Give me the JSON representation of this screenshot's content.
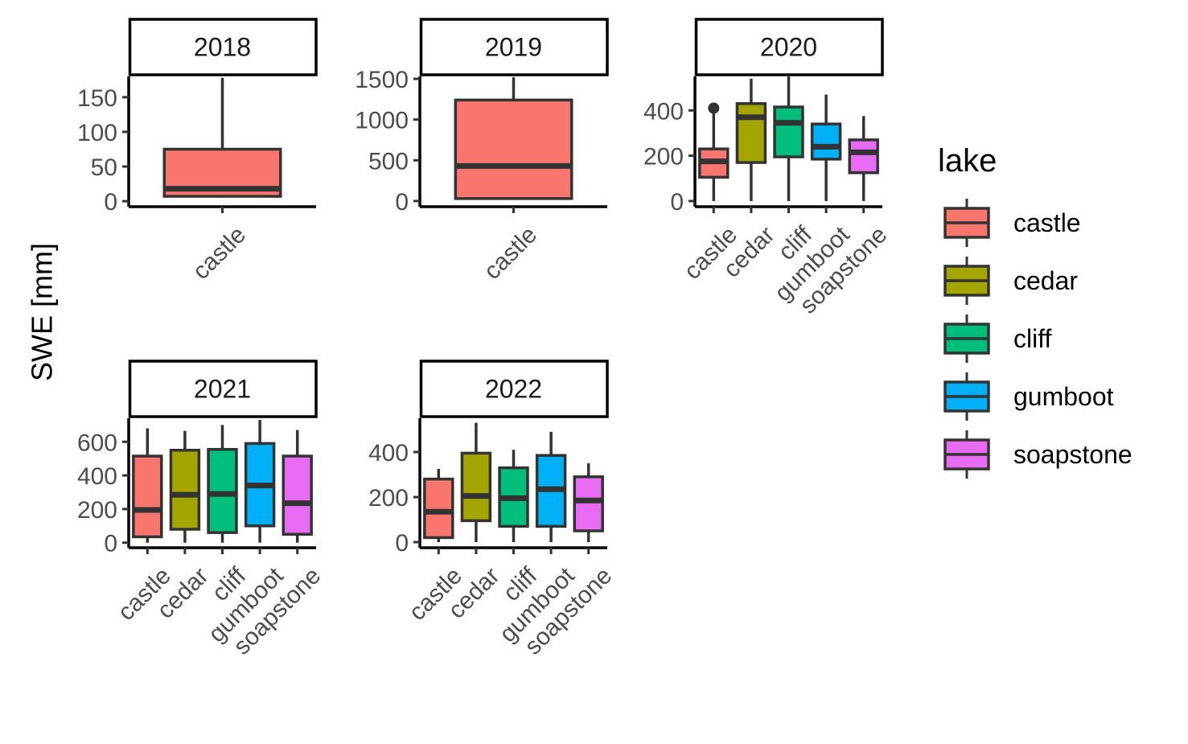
{
  "chart_data": {
    "type": "boxplot",
    "ylabel": "SWE [mm]",
    "legend": {
      "title": "lake",
      "position": "right",
      "entries": [
        "castle",
        "cedar",
        "cliff",
        "gumboot",
        "soapstone"
      ]
    },
    "colors": {
      "castle": "#F8766D",
      "cedar": "#A3A500",
      "cliff": "#00BF7D",
      "gumboot": "#00B0F6",
      "soapstone": "#E76BF3"
    },
    "grid": false,
    "facets": [
      {
        "panel": "2018",
        "ylim": [
          -8,
          180
        ],
        "yticks": [
          0,
          50,
          100,
          150
        ],
        "boxes": [
          {
            "lake": "castle",
            "whisker_low": 5,
            "q1": 7,
            "median": 18,
            "q3": 75,
            "whisker_high": 178,
            "outliers": []
          }
        ]
      },
      {
        "panel": "2019",
        "ylim": [
          -70,
          1530
        ],
        "yticks": [
          0,
          500,
          1000,
          1500
        ],
        "boxes": [
          {
            "lake": "castle",
            "whisker_low": 20,
            "q1": 30,
            "median": 430,
            "q3": 1240,
            "whisker_high": 1520,
            "outliers": []
          }
        ]
      },
      {
        "panel": "2020",
        "ylim": [
          -25,
          550
        ],
        "yticks": [
          0,
          200,
          400
        ],
        "boxes": [
          {
            "lake": "castle",
            "whisker_low": 0,
            "q1": 105,
            "median": 175,
            "q3": 230,
            "whisker_high": 405,
            "outliers": [
              410
            ]
          },
          {
            "lake": "cedar",
            "whisker_low": 0,
            "q1": 170,
            "median": 370,
            "q3": 430,
            "whisker_high": 540,
            "outliers": []
          },
          {
            "lake": "cliff",
            "whisker_low": 0,
            "q1": 195,
            "median": 345,
            "q3": 415,
            "whisker_high": 550,
            "outliers": []
          },
          {
            "lake": "gumboot",
            "whisker_low": 0,
            "q1": 185,
            "median": 240,
            "q3": 340,
            "whisker_high": 470,
            "outliers": []
          },
          {
            "lake": "soapstone",
            "whisker_low": 0,
            "q1": 125,
            "median": 215,
            "q3": 270,
            "whisker_high": 375,
            "outliers": []
          }
        ]
      },
      {
        "panel": "2021",
        "ylim": [
          -30,
          740
        ],
        "yticks": [
          0,
          200,
          400,
          600
        ],
        "boxes": [
          {
            "lake": "castle",
            "whisker_low": 0,
            "q1": 35,
            "median": 195,
            "q3": 515,
            "whisker_high": 680,
            "outliers": []
          },
          {
            "lake": "cedar",
            "whisker_low": 0,
            "q1": 80,
            "median": 285,
            "q3": 550,
            "whisker_high": 665,
            "outliers": []
          },
          {
            "lake": "cliff",
            "whisker_low": 0,
            "q1": 60,
            "median": 290,
            "q3": 555,
            "whisker_high": 700,
            "outliers": []
          },
          {
            "lake": "gumboot",
            "whisker_low": 0,
            "q1": 100,
            "median": 340,
            "q3": 590,
            "whisker_high": 730,
            "outliers": []
          },
          {
            "lake": "soapstone",
            "whisker_low": 0,
            "q1": 50,
            "median": 235,
            "q3": 515,
            "whisker_high": 670,
            "outliers": []
          }
        ]
      },
      {
        "panel": "2022",
        "ylim": [
          -25,
          550
        ],
        "yticks": [
          0,
          200,
          400
        ],
        "boxes": [
          {
            "lake": "castle",
            "whisker_low": 0,
            "q1": 20,
            "median": 135,
            "q3": 280,
            "whisker_high": 325,
            "outliers": []
          },
          {
            "lake": "cedar",
            "whisker_low": 0,
            "q1": 95,
            "median": 205,
            "q3": 395,
            "whisker_high": 530,
            "outliers": []
          },
          {
            "lake": "cliff",
            "whisker_low": 0,
            "q1": 70,
            "median": 195,
            "q3": 330,
            "whisker_high": 410,
            "outliers": []
          },
          {
            "lake": "gumboot",
            "whisker_low": 0,
            "q1": 70,
            "median": 235,
            "q3": 385,
            "whisker_high": 490,
            "outliers": []
          },
          {
            "lake": "soapstone",
            "whisker_low": 0,
            "q1": 50,
            "median": 185,
            "q3": 290,
            "whisker_high": 350,
            "outliers": []
          }
        ]
      }
    ]
  }
}
